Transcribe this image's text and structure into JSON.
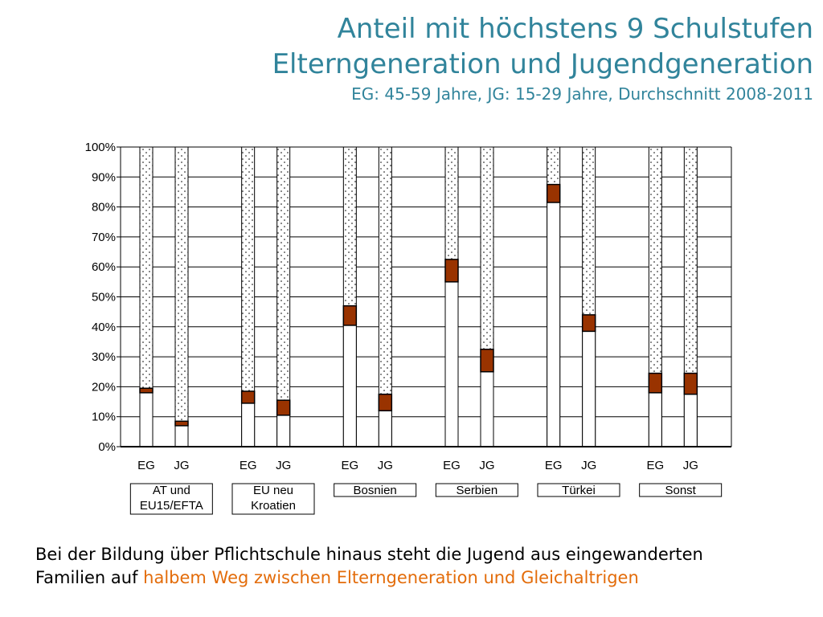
{
  "title": {
    "line1": "Anteil mit höchstens 9 Schulstufen",
    "line2": "Elterngeneration und Jugendgeneration",
    "line3": "EG: 45-59 Jahre, JG: 15-29 Jahre, Durchschnitt 2008-2011"
  },
  "colors": {
    "title": "#31849b",
    "band": "#993300",
    "highlight": "#e36c0a"
  },
  "chart_data": {
    "type": "bar",
    "ylim": [
      0,
      100
    ],
    "yticks": [
      "0%",
      "10%",
      "20%",
      "30%",
      "40%",
      "50%",
      "60%",
      "70%",
      "80%",
      "90%",
      "100%"
    ],
    "grid": true,
    "groups": [
      {
        "label_lines": [
          "AT und",
          "EU15/EFTA"
        ],
        "bars": [
          {
            "label": "EG",
            "low": 18,
            "high": 19.5
          },
          {
            "label": "JG",
            "low": 7,
            "high": 8.5
          }
        ]
      },
      {
        "label_lines": [
          "EU neu",
          "Kroatien"
        ],
        "bars": [
          {
            "label": "EG",
            "low": 14.5,
            "high": 18.5
          },
          {
            "label": "JG",
            "low": 10.5,
            "high": 15.5
          }
        ]
      },
      {
        "label_lines": [
          "Bosnien"
        ],
        "bars": [
          {
            "label": "EG",
            "low": 40.5,
            "high": 47
          },
          {
            "label": "JG",
            "low": 12,
            "high": 17.5
          }
        ]
      },
      {
        "label_lines": [
          "Serbien"
        ],
        "bars": [
          {
            "label": "EG",
            "low": 55,
            "high": 62.5
          },
          {
            "label": "JG",
            "low": 25,
            "high": 32.5
          }
        ]
      },
      {
        "label_lines": [
          "Türkei"
        ],
        "bars": [
          {
            "label": "EG",
            "low": 81.5,
            "high": 87.5
          },
          {
            "label": "JG",
            "low": 38.5,
            "high": 44
          }
        ]
      },
      {
        "label_lines": [
          "Sonst"
        ],
        "bars": [
          {
            "label": "EG",
            "low": 18,
            "high": 24.5
          },
          {
            "label": "JG",
            "low": 17.5,
            "high": 24.5
          }
        ]
      }
    ]
  },
  "caption": {
    "line1": "Bei der Bildung über Pflichtschule hinaus steht die Jugend aus eingewanderten",
    "line2_prefix": "Familien auf ",
    "line2_highlight": "halbem Weg zwischen Elterngeneration und Gleichaltrigen"
  }
}
